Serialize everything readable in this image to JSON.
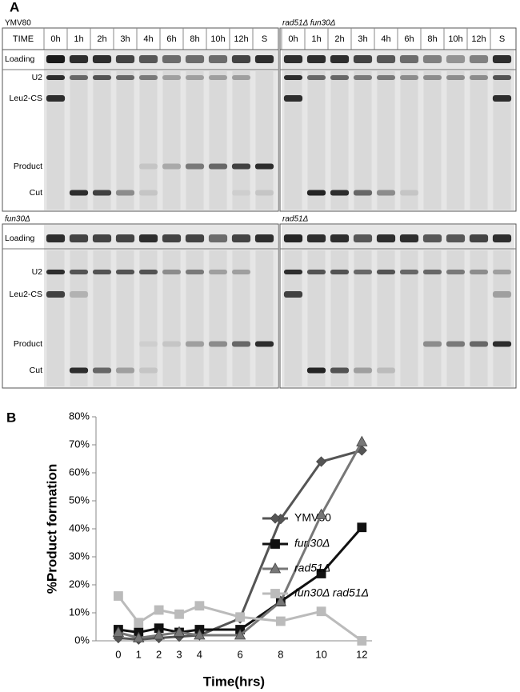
{
  "panel_a": {
    "label": "A",
    "header": "TIME",
    "lanes": [
      "0h",
      "1h",
      "2h",
      "3h",
      "4h",
      "6h",
      "8h",
      "10h",
      "12h",
      "S"
    ],
    "row_labels": [
      "Loading",
      "U2",
      "Leu2-CS",
      "Product",
      "Cut"
    ],
    "gels": [
      {
        "strain": "YMV80"
      },
      {
        "strain": "rad51Δ fun30Δ"
      },
      {
        "strain": "fun30Δ"
      },
      {
        "strain": "rad51Δ"
      }
    ]
  },
  "chart_data": {
    "type": "line",
    "panel_label": "B",
    "x_label": "Time(hrs)",
    "y_label": "%Product formation",
    "x": [
      0,
      1,
      2,
      3,
      4,
      6,
      8,
      10,
      12
    ],
    "xlim": [
      -1.1,
      12.5
    ],
    "xticks": [
      0,
      1,
      2,
      3,
      4,
      6,
      8,
      10,
      12
    ],
    "ylim": [
      0,
      80
    ],
    "yticks": [
      {
        "value": 0,
        "label": "0%"
      },
      {
        "value": 10,
        "label": "10%"
      },
      {
        "value": 20,
        "label": "20%"
      },
      {
        "value": 30,
        "label": "30%"
      },
      {
        "value": 40,
        "label": "40%"
      },
      {
        "value": 50,
        "label": "50%"
      },
      {
        "value": 60,
        "label": "60%"
      },
      {
        "value": 70,
        "label": "70%"
      },
      {
        "value": 80,
        "label": "80%"
      }
    ],
    "legend": "right",
    "series": [
      {
        "name": "YMV80",
        "color": "#555555",
        "marker": "diamond",
        "italic": false,
        "values": [
          1,
          0.5,
          1,
          1.5,
          2,
          8,
          43.5,
          64,
          68
        ]
      },
      {
        "name": "fun30Δ",
        "color": "#111111",
        "marker": "square",
        "italic": true,
        "values": [
          4,
          3,
          4.5,
          3,
          4,
          4,
          14,
          24,
          40.5
        ]
      },
      {
        "name": "rad51Δ",
        "color": "#777777",
        "marker": "triangle",
        "italic": true,
        "values": [
          3,
          1,
          2,
          3,
          2,
          2,
          14,
          45,
          71
        ]
      },
      {
        "name": "fun30Δ rad51Δ",
        "color": "#bbbbbb",
        "marker": "square",
        "italic": true,
        "values": [
          16,
          6.5,
          11,
          9.5,
          12.5,
          8.5,
          7,
          10.5,
          0
        ]
      }
    ]
  }
}
